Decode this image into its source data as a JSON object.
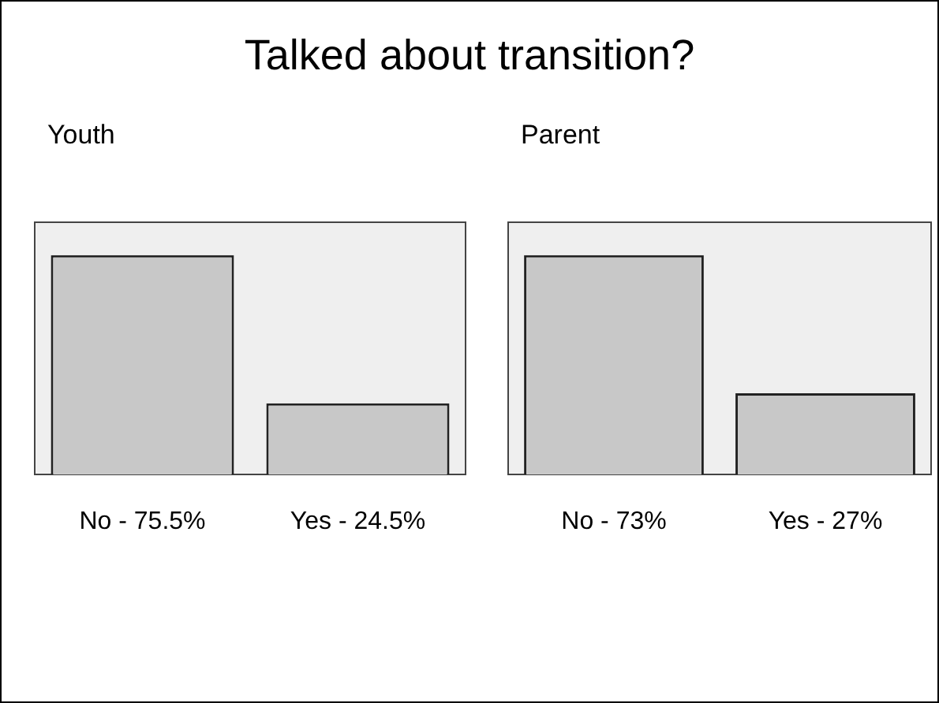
{
  "chart_data": [
    {
      "type": "bar",
      "title": "Talked about transition?",
      "subtitle": "Youth",
      "categories": [
        "No -",
        "Yes -"
      ],
      "values": [
        75.5,
        24.5
      ],
      "value_labels": [
        "75.5%",
        "24.5%"
      ],
      "color": "#c8c8c8",
      "grid": false,
      "legend": false
    },
    {
      "type": "bar",
      "subtitle": "Parent",
      "categories": [
        "No -",
        "Yes -"
      ],
      "values": [
        73,
        27
      ],
      "value_labels": [
        "73%",
        "27%"
      ],
      "color": "#c8c8c8",
      "grid": false,
      "legend": false
    }
  ]
}
